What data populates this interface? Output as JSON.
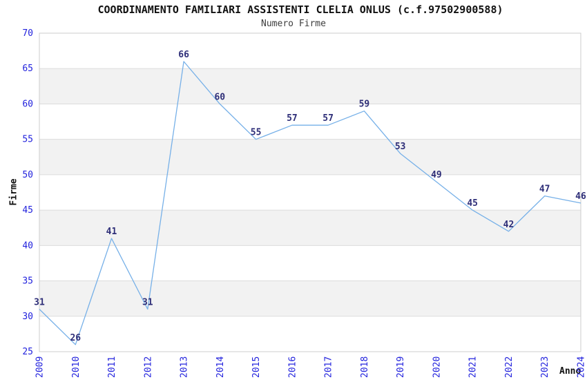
{
  "title": "COORDINAMENTO FAMILIARI ASSISTENTI CLELIA ONLUS (c.f.97502900588)",
  "subtitle": "Numero Firme",
  "chart_data": {
    "type": "line",
    "title": "COORDINAMENTO FAMILIARI ASSISTENTI CLELIA ONLUS (c.f.97502900588)",
    "subtitle": "Numero Firme",
    "xlabel": "Anno",
    "ylabel": "Firme",
    "x": [
      2009,
      2010,
      2011,
      2012,
      2013,
      2014,
      2015,
      2016,
      2017,
      2018,
      2019,
      2020,
      2021,
      2022,
      2023,
      2024
    ],
    "series": [
      {
        "name": "Numero Firme",
        "values": [
          31,
          26,
          41,
          31,
          66,
          60,
          55,
          57,
          57,
          59,
          53,
          49,
          45,
          42,
          47,
          46
        ]
      }
    ],
    "ylim": [
      25,
      70
    ],
    "ytick_step": 5,
    "yticks": [
      25,
      30,
      35,
      40,
      45,
      50,
      55,
      60,
      65,
      70
    ],
    "grid": true,
    "legend_position": "none",
    "data_labels_visible": true,
    "x_tick_rotation_deg": -90
  },
  "colors": {
    "line": "#76b0e8",
    "tick_label": "#2222dd",
    "data_label": "#2e2e78",
    "band_fill": "#f2f2f2",
    "grid_line": "#dcdcdc",
    "plot_border": "#cccccc",
    "title_text": "#111111",
    "subtitle_text": "#3d3d3d",
    "background": "#ffffff"
  }
}
